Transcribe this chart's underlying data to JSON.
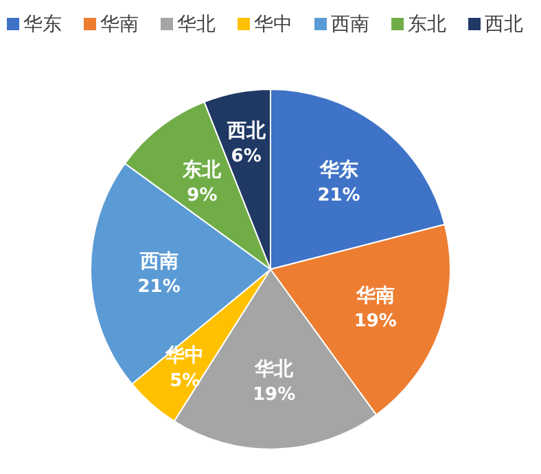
{
  "chart_data": {
    "type": "pie",
    "categories": [
      "华东",
      "华南",
      "华北",
      "华中",
      "西南",
      "东北",
      "西北"
    ],
    "values": [
      21,
      19,
      19,
      5,
      21,
      9,
      6
    ],
    "colors": [
      "#3f73c7",
      "#ed7d31",
      "#a5a5a5",
      "#ffc000",
      "#5b9bd5",
      "#70ad47",
      "#203864"
    ],
    "value_labels": [
      "21%",
      "19%",
      "19%",
      "5%",
      "21%",
      "9%",
      "6%"
    ],
    "legend": "top"
  }
}
